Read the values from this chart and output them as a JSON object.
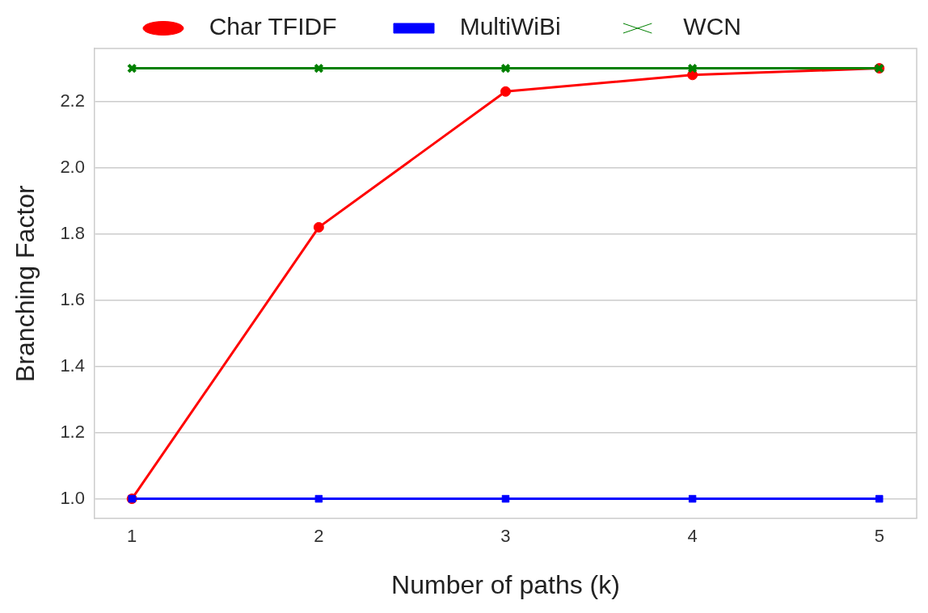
{
  "chart_data": {
    "type": "line",
    "xlabel": "Number of paths (k)",
    "ylabel": "Branching Factor",
    "x": [
      1,
      2,
      3,
      4,
      5
    ],
    "series": [
      {
        "name": "Char TFIDF",
        "color": "#ff0000",
        "marker": "circle",
        "values": [
          1.0,
          1.82,
          2.23,
          2.28,
          2.3
        ]
      },
      {
        "name": "MultiWiBi",
        "color": "#0000ff",
        "marker": "square",
        "values": [
          1.0,
          1.0,
          1.0,
          1.0,
          1.0
        ]
      },
      {
        "name": "WCN",
        "color": "#008000",
        "marker": "cross",
        "values": [
          2.3,
          2.3,
          2.3,
          2.3,
          2.3
        ]
      }
    ],
    "xlim": [
      0.8,
      5.2
    ],
    "xticks": [
      1,
      2,
      3,
      4,
      5
    ],
    "ylim": [
      0.94,
      2.36
    ],
    "yticks": [
      {
        "value": 1.0,
        "label": "1.0"
      },
      {
        "value": 1.2,
        "label": "1.2"
      },
      {
        "value": 1.4,
        "label": "1.4"
      },
      {
        "value": 1.6,
        "label": "1.6"
      },
      {
        "value": 1.8,
        "label": "1.8"
      },
      {
        "value": 2.0,
        "label": "2.0"
      },
      {
        "value": 2.2,
        "label": "2.2"
      }
    ],
    "grid": "y",
    "legend": "top",
    "line_style": "solid"
  }
}
